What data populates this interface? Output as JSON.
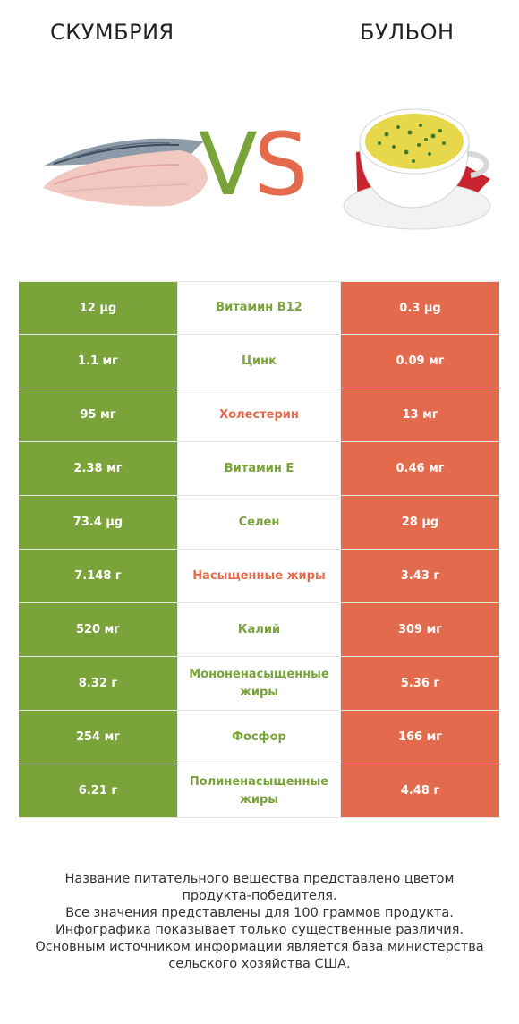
{
  "header": {
    "left_title": "СКУМБРИЯ",
    "right_title": "БУЛЬОН"
  },
  "vs": {
    "v": "V",
    "s": "S"
  },
  "colors": {
    "left": "#7aa33a",
    "right": "#e36a4c"
  },
  "rows": [
    {
      "left": "12 µg",
      "label": "Витамин B12",
      "right": "0.3 µg",
      "winner": "left"
    },
    {
      "left": "1.1 мг",
      "label": "Цинк",
      "right": "0.09 мг",
      "winner": "left"
    },
    {
      "left": "95 мг",
      "label": "Холестерин",
      "right": "13 мг",
      "winner": "right"
    },
    {
      "left": "2.38 мг",
      "label": "Витамин E",
      "right": "0.46 мг",
      "winner": "left"
    },
    {
      "left": "73.4 µg",
      "label": "Селен",
      "right": "28 µg",
      "winner": "left"
    },
    {
      "left": "7.148 г",
      "label": "Насыщенные жиры",
      "right": "3.43 г",
      "winner": "right"
    },
    {
      "left": "520 мг",
      "label": "Калий",
      "right": "309 мг",
      "winner": "left"
    },
    {
      "left": "8.32 г",
      "label": "Мононенасыщенные жиры",
      "right": "5.36 г",
      "winner": "left"
    },
    {
      "left": "254 мг",
      "label": "Фосфор",
      "right": "166 мг",
      "winner": "left"
    },
    {
      "left": "6.21 г",
      "label": "Полиненасыщенные жиры",
      "right": "4.48 г",
      "winner": "left"
    }
  ],
  "footer": [
    "Название питательного вещества представлено цветом",
    "продукта-победителя.",
    "Все значения представлены для 100 граммов продукта.",
    "Инфографика показывает только существенные различия.",
    "Основным источником информации является база министерства",
    "сельского хозяйства США."
  ]
}
